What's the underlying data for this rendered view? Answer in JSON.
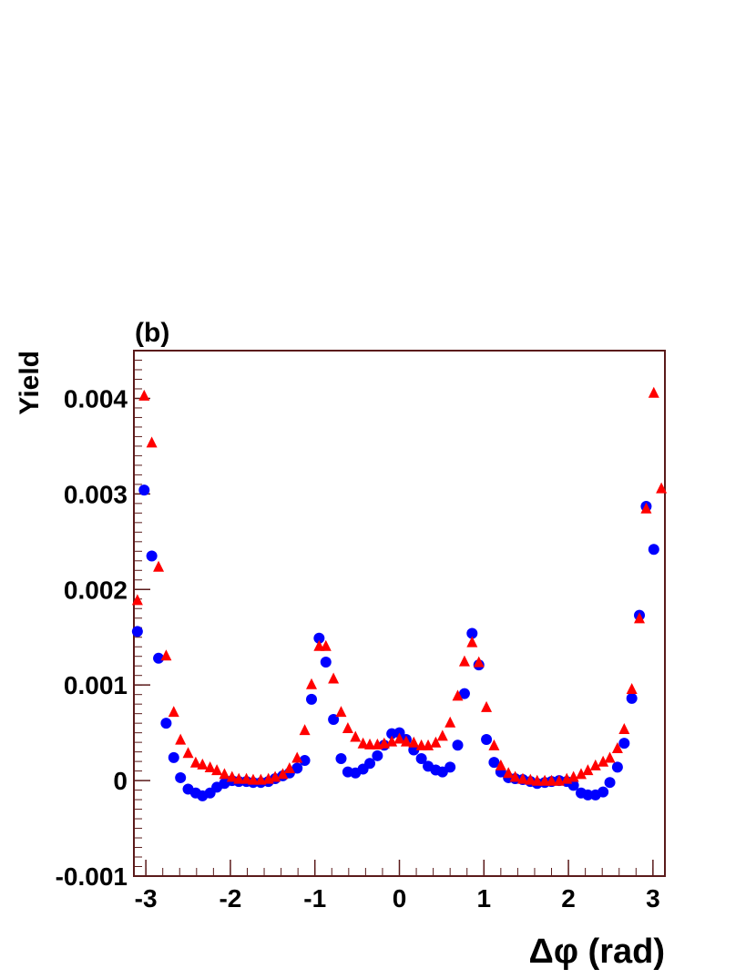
{
  "chart_data": {
    "type": "scatter",
    "panel_label": "(b)",
    "xlabel": "Δφ (rad)",
    "ylabel": "Yield",
    "xlim": [
      -3.1416,
      3.1416
    ],
    "ylim": [
      -0.001,
      0.0045
    ],
    "x_ticks": [
      -3,
      -2,
      -1,
      0,
      1,
      2,
      3
    ],
    "x_tick_labels": [
      "-3",
      "-2",
      "-1",
      "0",
      "1",
      "2",
      "3"
    ],
    "y_ticks": [
      -0.001,
      0,
      0.001,
      0.002,
      0.003,
      0.004
    ],
    "y_tick_labels": [
      "-0.001",
      "0",
      "0.001",
      "0.002",
      "0.003",
      "0.004"
    ],
    "grid": false,
    "frame_color": "#5a1a1a",
    "series": [
      {
        "marker": "circle",
        "color": "#0000ff",
        "points": [
          [
            -3.1,
            0.00156
          ],
          [
            -3.02,
            0.00304
          ],
          [
            -2.93,
            0.00235
          ],
          [
            -2.85,
            0.00128
          ],
          [
            -2.76,
            0.0006
          ],
          [
            -2.67,
            0.00024
          ],
          [
            -2.59,
            3e-05
          ],
          [
            -2.5,
            -9e-05
          ],
          [
            -2.41,
            -0.00013
          ],
          [
            -2.33,
            -0.00016
          ],
          [
            -2.24,
            -0.00013
          ],
          [
            -2.16,
            -7e-05
          ],
          [
            -2.07,
            -3e-05
          ],
          [
            -1.98,
            0.0
          ],
          [
            -1.9,
            -1e-05
          ],
          [
            -1.81,
            -1e-05
          ],
          [
            -1.73,
            -2e-05
          ],
          [
            -1.64,
            -2e-05
          ],
          [
            -1.55,
            -1e-05
          ],
          [
            -1.47,
            2e-05
          ],
          [
            -1.38,
            5e-05
          ],
          [
            -1.3,
            8e-05
          ],
          [
            -1.21,
            0.00013
          ],
          [
            -1.12,
            0.00021
          ],
          [
            -1.04,
            0.00085
          ],
          [
            -0.95,
            0.00149
          ],
          [
            -0.87,
            0.00124
          ],
          [
            -0.78,
            0.00064
          ],
          [
            -0.69,
            0.00023
          ],
          [
            -0.61,
            9e-05
          ],
          [
            -0.52,
            8e-05
          ],
          [
            -0.43,
            0.00012
          ],
          [
            -0.35,
            0.00018
          ],
          [
            -0.26,
            0.00026
          ],
          [
            -0.18,
            0.00037
          ],
          [
            -0.09,
            0.00049
          ],
          [
            0.0,
            0.0005
          ],
          [
            0.08,
            0.00043
          ],
          [
            0.17,
            0.00032
          ],
          [
            0.26,
            0.00023
          ],
          [
            0.34,
            0.00015
          ],
          [
            0.43,
            0.00011
          ],
          [
            0.51,
            9e-05
          ],
          [
            0.6,
            0.00014
          ],
          [
            0.69,
            0.00037
          ],
          [
            0.77,
            0.00091
          ],
          [
            0.86,
            0.00154
          ],
          [
            0.94,
            0.00121
          ],
          [
            1.03,
            0.00043
          ],
          [
            1.12,
            0.00019
          ],
          [
            1.2,
            9e-05
          ],
          [
            1.29,
            3e-05
          ],
          [
            1.37,
            2e-05
          ],
          [
            1.46,
            1e-05
          ],
          [
            1.55,
            -1e-05
          ],
          [
            1.63,
            -3e-05
          ],
          [
            1.72,
            -2e-05
          ],
          [
            1.8,
            -1e-05
          ],
          [
            1.89,
            0.0
          ],
          [
            1.98,
            -1e-05
          ],
          [
            2.06,
            -5e-05
          ],
          [
            2.15,
            -0.00013
          ],
          [
            2.23,
            -0.00015
          ],
          [
            2.32,
            -0.00015
          ],
          [
            2.41,
            -0.00012
          ],
          [
            2.49,
            -2e-05
          ],
          [
            2.58,
            0.00014
          ],
          [
            2.66,
            0.00039
          ],
          [
            2.75,
            0.00086
          ],
          [
            2.84,
            0.00173
          ],
          [
            2.92,
            0.00287
          ],
          [
            3.01,
            0.00242
          ]
        ]
      },
      {
        "marker": "triangle",
        "color": "#ff0000",
        "points": [
          [
            -3.1,
            0.00188
          ],
          [
            -3.02,
            0.00402
          ],
          [
            -2.93,
            0.00353
          ],
          [
            -2.85,
            0.00223
          ],
          [
            -2.76,
            0.0013
          ],
          [
            -2.67,
            0.00071
          ],
          [
            -2.59,
            0.00042
          ],
          [
            -2.5,
            0.00028
          ],
          [
            -2.41,
            0.00018
          ],
          [
            -2.33,
            0.00016
          ],
          [
            -2.24,
            0.00013
          ],
          [
            -2.16,
            0.0001
          ],
          [
            -2.07,
            6e-05
          ],
          [
            -1.98,
            3e-05
          ],
          [
            -1.9,
            1e-05
          ],
          [
            -1.81,
            1e-05
          ],
          [
            -1.73,
            0.0
          ],
          [
            -1.64,
            0.0
          ],
          [
            -1.55,
            1e-05
          ],
          [
            -1.47,
            3e-05
          ],
          [
            -1.38,
            6e-05
          ],
          [
            -1.3,
            0.00012
          ],
          [
            -1.21,
            0.00023
          ],
          [
            -1.12,
            0.00052
          ],
          [
            -1.04,
            0.001
          ],
          [
            -0.95,
            0.0014
          ],
          [
            -0.87,
            0.0014
          ],
          [
            -0.78,
            0.00106
          ],
          [
            -0.69,
            0.00071
          ],
          [
            -0.61,
            0.00054
          ],
          [
            -0.52,
            0.00045
          ],
          [
            -0.43,
            0.00038
          ],
          [
            -0.35,
            0.00037
          ],
          [
            -0.26,
            0.00037
          ],
          [
            -0.18,
            0.00038
          ],
          [
            -0.09,
            0.0004
          ],
          [
            0.0,
            0.00043
          ],
          [
            0.08,
            0.0004
          ],
          [
            0.17,
            0.00039
          ],
          [
            0.26,
            0.00036
          ],
          [
            0.34,
            0.00036
          ],
          [
            0.43,
            0.00039
          ],
          [
            0.51,
            0.00046
          ],
          [
            0.6,
            0.0006
          ],
          [
            0.69,
            0.00088
          ],
          [
            0.77,
            0.00124
          ],
          [
            0.86,
            0.00144
          ],
          [
            0.94,
            0.00123
          ],
          [
            1.03,
            0.00076
          ],
          [
            1.12,
            0.00036
          ],
          [
            1.2,
            0.00015
          ],
          [
            1.29,
            7e-05
          ],
          [
            1.37,
            3e-05
          ],
          [
            1.46,
            1e-05
          ],
          [
            1.55,
            0.0
          ],
          [
            1.63,
            -1e-05
          ],
          [
            1.72,
            -1e-05
          ],
          [
            1.8,
            -1e-05
          ],
          [
            1.89,
            -1e-05
          ],
          [
            1.98,
            1e-05
          ],
          [
            2.06,
            3e-05
          ],
          [
            2.15,
            6e-05
          ],
          [
            2.23,
            0.0001
          ],
          [
            2.32,
            0.00015
          ],
          [
            2.41,
            0.00019
          ],
          [
            2.49,
            0.00023
          ],
          [
            2.58,
            0.00033
          ],
          [
            2.66,
            0.00053
          ],
          [
            2.75,
            0.00095
          ],
          [
            2.84,
            0.00169
          ],
          [
            2.92,
            0.00284
          ],
          [
            3.01,
            0.00405
          ],
          [
            3.1,
            0.00305
          ]
        ]
      }
    ]
  }
}
